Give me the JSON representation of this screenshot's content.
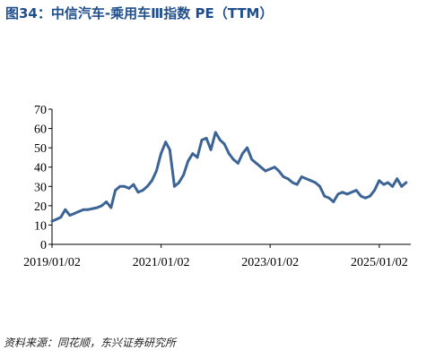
{
  "header": {
    "title": "图34：中信汽车-乘用车Ⅲ指数 PE（TTM）"
  },
  "footer": {
    "source": "资料来源：同花顺，东兴证券研究所"
  },
  "colors": {
    "title": "#1f4e8c",
    "series": "#3c6496",
    "axis": "#000000"
  },
  "chart_data": {
    "type": "line",
    "title": "",
    "xlabel": "",
    "ylabel": "",
    "ylim": [
      0,
      70
    ],
    "yticks": [
      0,
      10,
      20,
      30,
      40,
      50,
      60,
      70
    ],
    "xlim": [
      "2019-01-02",
      "2025-08-01"
    ],
    "xticks": [
      "2019/01/02",
      "2021/01/02",
      "2023/01/02",
      "2025/01/02"
    ],
    "grid": false,
    "legend": "none",
    "series": [
      {
        "x": [
          "2019-01-02",
          "2019-02-01",
          "2019-03-01",
          "2019-04-01",
          "2019-05-01",
          "2019-06-01",
          "2019-07-01",
          "2019-08-01",
          "2019-09-01",
          "2019-10-01",
          "2019-11-01",
          "2019-12-01",
          "2020-01-01",
          "2020-02-01",
          "2020-03-01",
          "2020-04-01",
          "2020-05-01",
          "2020-06-01",
          "2020-07-01",
          "2020-08-01",
          "2020-09-01",
          "2020-10-01",
          "2020-11-01",
          "2020-12-01",
          "2021-01-01",
          "2021-02-01",
          "2021-03-01",
          "2021-04-01",
          "2021-05-01",
          "2021-06-01",
          "2021-07-01",
          "2021-08-01",
          "2021-09-01",
          "2021-10-01",
          "2021-11-01",
          "2021-12-01",
          "2022-01-01",
          "2022-02-01",
          "2022-03-01",
          "2022-04-01",
          "2022-05-01",
          "2022-06-01",
          "2022-07-01",
          "2022-08-01",
          "2022-09-01",
          "2022-10-01",
          "2022-11-01",
          "2022-12-01",
          "2023-01-01",
          "2023-02-01",
          "2023-03-01",
          "2023-04-01",
          "2023-05-01",
          "2023-06-01",
          "2023-07-01",
          "2023-08-01",
          "2023-09-01",
          "2023-10-01",
          "2023-11-01",
          "2023-12-01",
          "2024-01-01",
          "2024-02-01",
          "2024-03-01",
          "2024-04-01",
          "2024-05-01",
          "2024-06-01",
          "2024-07-01",
          "2024-08-01",
          "2024-09-01",
          "2024-10-01",
          "2024-11-01",
          "2024-12-01",
          "2025-01-01",
          "2025-02-01",
          "2025-03-01",
          "2025-04-01",
          "2025-05-01",
          "2025-06-01",
          "2025-07-01"
        ],
        "values": [
          12,
          13,
          14,
          18,
          15,
          16,
          17,
          18,
          18,
          18.5,
          19,
          20,
          22,
          19,
          28,
          30,
          30,
          29,
          31,
          27,
          28,
          30,
          33,
          38,
          47,
          53,
          49,
          30,
          32,
          36,
          43,
          47,
          45,
          54,
          55,
          49,
          58,
          54,
          52,
          47,
          44,
          42,
          47,
          50,
          44,
          42,
          40,
          38,
          39,
          40,
          38,
          35,
          34,
          32,
          31,
          35,
          34,
          33,
          32,
          30,
          25,
          24,
          22,
          26,
          27,
          26,
          27,
          28,
          25,
          24,
          25,
          28,
          33,
          31,
          32,
          30,
          34,
          30,
          32
        ]
      }
    ]
  }
}
